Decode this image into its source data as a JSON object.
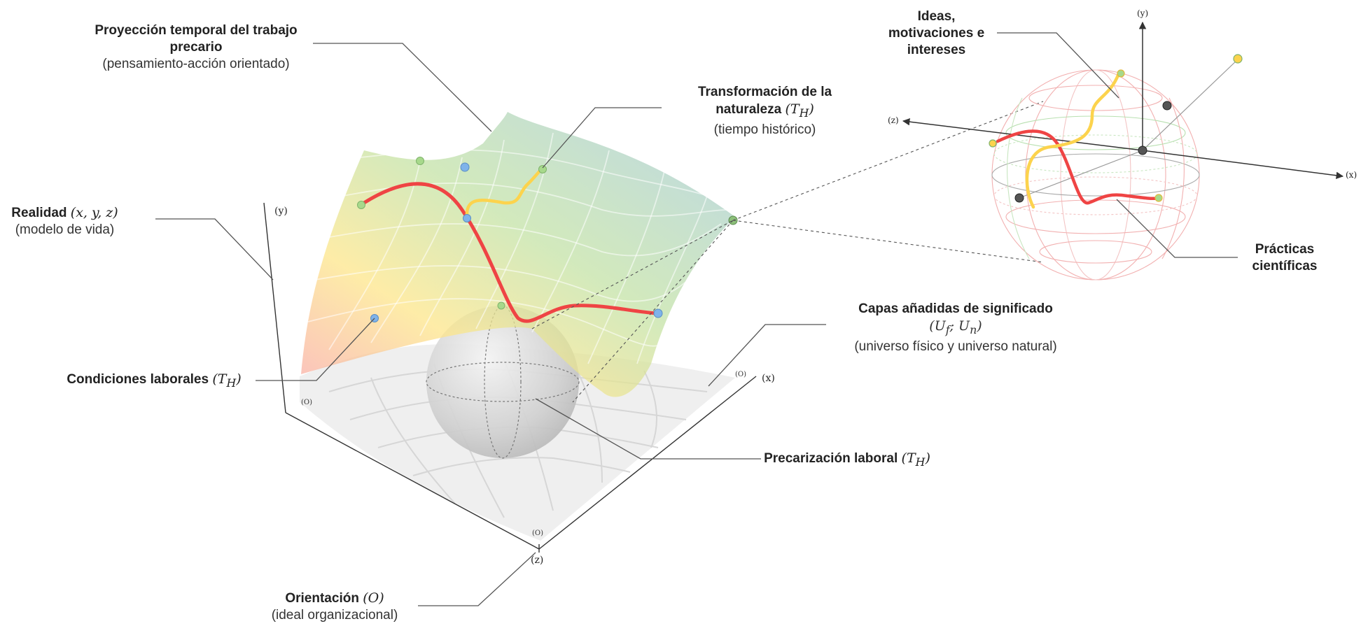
{
  "labels": {
    "proyeccion": {
      "title": "Proyección temporal del trabajo",
      "title2": "precario",
      "sub": "(pensamiento-acción orientado)"
    },
    "transformacion": {
      "title": "Transformación de la",
      "title2": "naturaleza",
      "math": "(T",
      "math_sub": "H",
      "math_end": ")",
      "sub": "(tiempo histórico)"
    },
    "realidad": {
      "title": "Realidad",
      "math": "(x, y, z)",
      "sub": "(modelo de vida)"
    },
    "condiciones": {
      "title": "Condiciones laborales",
      "math": "(T",
      "math_sub": "H",
      "math_end": ")"
    },
    "capas": {
      "title": "Capas añadidas de significado",
      "math": "(U",
      "math_sub1": "f",
      "math_mid": "; U",
      "math_sub2": "n",
      "math_end": ")",
      "sub": "(universo físico y universo natural)"
    },
    "precarizacion": {
      "title": "Precarización laboral",
      "math": "(T",
      "math_sub": "H",
      "math_end": ")"
    },
    "orientacion": {
      "title": "Orientación",
      "math": "(O)",
      "sub": "(ideal organizacional)"
    },
    "ideas": {
      "line1": "Ideas,",
      "line2": "motivaciones e",
      "line3": "intereses"
    },
    "practicas": {
      "line1": "Prácticas",
      "line2": "científicas"
    }
  },
  "axes": {
    "left_y": "(y)",
    "left_x": "(x)",
    "left_z": "(z)",
    "origin": "(O)",
    "right_y": "(y)",
    "right_x": "(x)",
    "right_z": "(z)"
  },
  "colors": {
    "red_path": "#ef4444",
    "yellow_path": "#fcd34d",
    "blue_dot": "#7fb3ea",
    "green_dot": "#a7d98b",
    "leader": "#555555"
  }
}
